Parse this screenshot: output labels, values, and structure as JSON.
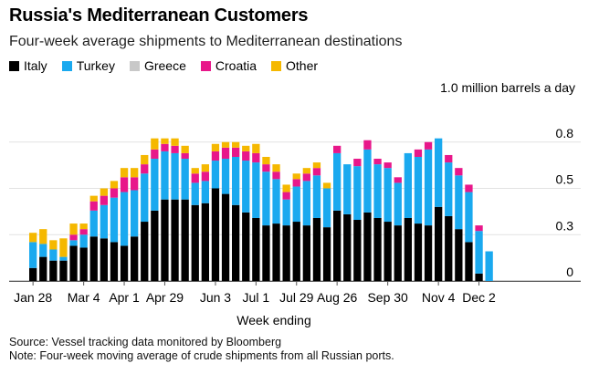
{
  "chart_data": {
    "type": "bar",
    "stacked": true,
    "title": "Russia's Mediterranean Customers",
    "subtitle": "Four-week average shipments to Mediterranean destinations",
    "unit_label": "1.0 million barrels a day",
    "xlabel": "Week ending",
    "ylim": [
      0,
      1.0
    ],
    "y_ticks": [
      {
        "value": 0.0,
        "label": "0"
      },
      {
        "value": 0.25,
        "label": "0.3"
      },
      {
        "value": 0.5,
        "label": "0.5"
      },
      {
        "value": 0.75,
        "label": "0.8"
      }
    ],
    "x_tick_labels": [
      {
        "index": 0,
        "label": "Jan 28"
      },
      {
        "index": 5,
        "label": "Mar 4"
      },
      {
        "index": 9,
        "label": "Apr 1"
      },
      {
        "index": 13,
        "label": "Apr 29"
      },
      {
        "index": 18,
        "label": "Jun 3"
      },
      {
        "index": 22,
        "label": "Jul 1"
      },
      {
        "index": 26,
        "label": "Jul 29"
      },
      {
        "index": 30,
        "label": "Aug 26"
      },
      {
        "index": 35,
        "label": "Sep 30"
      },
      {
        "index": 40,
        "label": "Nov 4"
      },
      {
        "index": 44,
        "label": "Dec 2"
      }
    ],
    "series": [
      {
        "name": "Italy",
        "color": "#000000",
        "values": [
          0.07,
          0.13,
          0.11,
          0.11,
          0.19,
          0.18,
          0.24,
          0.23,
          0.21,
          0.19,
          0.24,
          0.32,
          0.38,
          0.44,
          0.44,
          0.44,
          0.41,
          0.42,
          0.5,
          0.47,
          0.41,
          0.37,
          0.34,
          0.3,
          0.31,
          0.3,
          0.32,
          0.3,
          0.34,
          0.29,
          0.38,
          0.36,
          0.33,
          0.37,
          0.34,
          0.32,
          0.3,
          0.34,
          0.31,
          0.3,
          0.4,
          0.35,
          0.28,
          0.21,
          0.04,
          0.0
        ]
      },
      {
        "name": "Turkey",
        "color": "#1aa9ef",
        "values": [
          0.14,
          0.07,
          0.06,
          0.02,
          0.03,
          0.07,
          0.14,
          0.18,
          0.24,
          0.29,
          0.25,
          0.26,
          0.28,
          0.26,
          0.25,
          0.22,
          0.12,
          0.12,
          0.15,
          0.19,
          0.26,
          0.28,
          0.3,
          0.29,
          0.24,
          0.14,
          0.19,
          0.24,
          0.23,
          0.21,
          0.31,
          0.27,
          0.29,
          0.34,
          0.29,
          0.29,
          0.23,
          0.35,
          0.36,
          0.41,
          0.37,
          0.29,
          0.29,
          0.27,
          0.23,
          0.16
        ]
      },
      {
        "name": "Greece",
        "color": "#c8c8c8",
        "values": [
          0.0,
          0.0,
          0.0,
          0.0,
          0.0,
          0.0,
          0.0,
          0.0,
          0.0,
          0.0,
          0.0,
          0.0,
          0.0,
          0.0,
          0.0,
          0.0,
          0.0,
          0.0,
          0.0,
          0.0,
          0.0,
          0.0,
          0.0,
          0.0,
          0.0,
          0.0,
          0.0,
          0.0,
          0.0,
          0.0,
          0.0,
          0.0,
          0.0,
          0.0,
          0.0,
          0.0,
          0.0,
          0.0,
          0.0,
          0.0,
          0.0,
          0.0,
          0.0,
          0.0,
          0.0,
          0.0
        ]
      },
      {
        "name": "Croatia",
        "color": "#e8178a",
        "values": [
          0.0,
          0.0,
          0.0,
          0.0,
          0.03,
          0.03,
          0.05,
          0.05,
          0.05,
          0.08,
          0.07,
          0.05,
          0.05,
          0.04,
          0.04,
          0.03,
          0.05,
          0.05,
          0.05,
          0.06,
          0.05,
          0.05,
          0.05,
          0.04,
          0.04,
          0.04,
          0.04,
          0.04,
          0.04,
          0.0,
          0.04,
          0.0,
          0.04,
          0.05,
          0.03,
          0.03,
          0.03,
          0.0,
          0.04,
          0.04,
          0.0,
          0.04,
          0.04,
          0.04,
          0.03,
          0.0
        ]
      },
      {
        "name": "Other",
        "color": "#f5b800",
        "values": [
          0.05,
          0.08,
          0.05,
          0.1,
          0.06,
          0.03,
          0.03,
          0.04,
          0.04,
          0.05,
          0.05,
          0.05,
          0.06,
          0.03,
          0.04,
          0.04,
          0.03,
          0.04,
          0.04,
          0.03,
          0.03,
          0.03,
          0.05,
          0.04,
          0.04,
          0.04,
          0.03,
          0.03,
          0.03,
          0.03,
          0.0,
          0.0,
          0.0,
          0.0,
          0.0,
          0.0,
          0.0,
          0.0,
          0.0,
          0.0,
          0.0,
          0.0,
          0.0,
          0.0,
          0.0,
          0.0
        ]
      }
    ]
  },
  "source_note": "Source: Vessel tracking data monitored by Bloomberg",
  "method_note": "Note: Four-week moving average of crude shipments from all Russian ports."
}
